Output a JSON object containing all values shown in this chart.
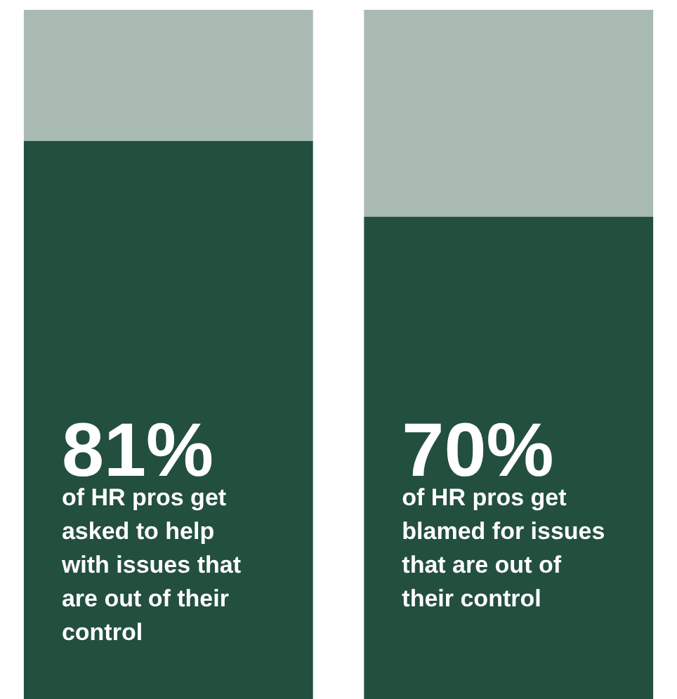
{
  "chart_data": {
    "type": "bar",
    "stacked": true,
    "categories": [
      "of HR pros get asked to help with issues that are out of their control",
      "of HR pros get blamed for issues that are out of their control"
    ],
    "series": [
      {
        "color": "#234f3e",
        "values": [
          81,
          70
        ],
        "value_labels": [
          "81%",
          "70%"
        ]
      },
      {
        "color": "#a9bab3",
        "values": [
          19,
          30
        ]
      }
    ]
  }
}
